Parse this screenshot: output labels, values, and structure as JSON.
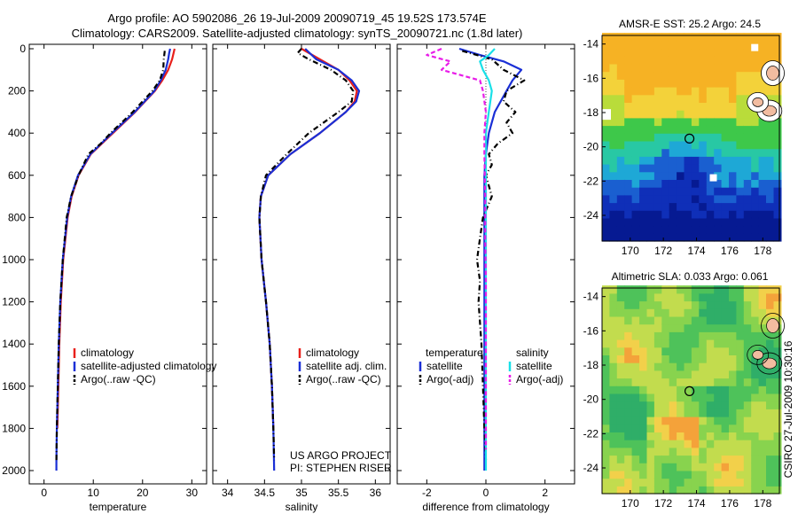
{
  "header": {
    "line1": "Argo profile: AO 5902086_26 19-Jul-2009 20090719_45 19.52S 173.574E",
    "line2": "Climatology: CARS2009. Satellite-adjusted climatology: synTS_20090721.nc (1.8d later)"
  },
  "colors": {
    "climatology": "#e8201c",
    "satellite": "#1a2fd6",
    "argo": "#000000",
    "salinity_satellite": "#19e0e8",
    "salinity_argo": "#e81ce8"
  },
  "chart_data": [
    {
      "type": "line",
      "id": "temperature",
      "xlabel": "temperature",
      "ylabel": "",
      "xlim": [
        -3,
        33
      ],
      "ylim": [
        2000,
        0
      ],
      "xticks": [
        0,
        10,
        20,
        30
      ],
      "yticks": [
        0,
        200,
        400,
        600,
        800,
        1000,
        1200,
        1400,
        1600,
        1800,
        2000
      ],
      "legend": {
        "position": "lower-right",
        "entries": [
          "climatology",
          "satellite-adjusted climatology",
          "Argo(..raw -QC)"
        ]
      },
      "series": [
        {
          "name": "climatology",
          "color": "#e8201c",
          "dash": "",
          "depth": [
            0,
            20,
            50,
            100,
            150,
            200,
            300,
            400,
            500,
            600,
            700,
            800,
            1000,
            1200,
            1400,
            1600,
            1800
          ],
          "values": [
            26.5,
            26.3,
            26.0,
            25.2,
            24.0,
            22.5,
            18.5,
            14.0,
            9.5,
            7.0,
            5.6,
            4.8,
            3.9,
            3.4,
            3.1,
            2.9,
            2.7
          ]
        },
        {
          "name": "satellite-adjusted climatology",
          "color": "#1a2fd6",
          "dash": "",
          "depth": [
            0,
            20,
            50,
            100,
            150,
            200,
            300,
            400,
            500,
            600,
            700,
            800,
            1000,
            1200,
            1400,
            1600,
            1800,
            1950,
            2000
          ],
          "values": [
            25.6,
            25.4,
            25.2,
            24.7,
            23.7,
            22.4,
            18.4,
            13.8,
            9.4,
            6.9,
            5.5,
            4.7,
            3.8,
            3.3,
            3.0,
            2.8,
            2.6,
            2.5,
            2.5
          ]
        },
        {
          "name": "Argo(..raw -QC)",
          "color": "#000000",
          "dash": "6,3,1,3",
          "depth": [
            10,
            50,
            100,
            150,
            200,
            300,
            400,
            450,
            500,
            600,
            700,
            800,
            1000,
            1200,
            1400,
            1600,
            1800,
            1950
          ],
          "values": [
            24.5,
            24.3,
            24.2,
            23.5,
            22.0,
            18.0,
            13.5,
            11.5,
            9.0,
            7.0,
            5.5,
            4.6,
            3.8,
            3.3,
            3.0,
            2.8,
            2.6,
            2.5
          ]
        }
      ]
    },
    {
      "type": "line",
      "id": "salinity",
      "xlabel": "salinity",
      "ylabel": "",
      "xlim": [
        33.8,
        36.2
      ],
      "ylim": [
        2000,
        0
      ],
      "xticks": [
        34,
        34.5,
        35,
        35.5,
        36
      ],
      "xticklabels": [
        "34",
        "34.5",
        "35",
        "35.5",
        "36"
      ],
      "legend": {
        "position": "lower-right",
        "entries": [
          "climatology",
          "satellite adj. clim.",
          "Argo(..raw -QC)"
        ]
      },
      "annotations": [
        "US ARGO PROJECT",
        "PI: STEPHEN RISER"
      ],
      "series": [
        {
          "name": "climatology",
          "color": "#e8201c",
          "dash": "",
          "depth": [
            0,
            50,
            100,
            150,
            200,
            250,
            300,
            400,
            500,
            600,
            700,
            800,
            1000,
            1200,
            1400,
            1600,
            1800
          ],
          "values": [
            35.0,
            35.25,
            35.5,
            35.65,
            35.75,
            35.72,
            35.6,
            35.25,
            34.85,
            34.55,
            34.45,
            34.43,
            34.46,
            34.52,
            34.57,
            34.6,
            34.62
          ]
        },
        {
          "name": "satellite adj. clim.",
          "color": "#1a2fd6",
          "dash": "",
          "depth": [
            0,
            50,
            100,
            150,
            200,
            250,
            300,
            400,
            500,
            600,
            700,
            800,
            1000,
            1200,
            1400,
            1600,
            1800,
            2000
          ],
          "values": [
            35.05,
            35.2,
            35.5,
            35.68,
            35.78,
            35.74,
            35.6,
            35.25,
            34.85,
            34.55,
            34.45,
            34.43,
            34.46,
            34.52,
            34.57,
            34.6,
            34.62,
            34.63
          ]
        },
        {
          "name": "Argo(..raw -QC)",
          "color": "#000000",
          "dash": "6,3,1,3",
          "depth": [
            0,
            20,
            50,
            100,
            150,
            200,
            250,
            300,
            400,
            500,
            600,
            700,
            800,
            1000,
            1200,
            1400,
            1600,
            1800,
            1950
          ],
          "values": [
            35.0,
            34.95,
            35.1,
            35.4,
            35.6,
            35.7,
            35.68,
            35.5,
            35.1,
            34.8,
            34.52,
            34.45,
            34.43,
            34.46,
            34.52,
            34.57,
            34.6,
            34.62,
            34.63
          ]
        }
      ]
    },
    {
      "type": "line",
      "id": "difference",
      "xlabel": "difference from climatology",
      "ylabel": "",
      "xlim": [
        -3,
        3
      ],
      "ylim": [
        2000,
        0
      ],
      "xticks": [
        -2,
        0,
        2
      ],
      "legend": {
        "position": "lower-center",
        "entries": [
          "temperature",
          "satellite",
          "Argo(-adj)",
          "salinity",
          "satellite",
          "Argo(-adj)"
        ]
      },
      "series": [
        {
          "name": "temperature satellite",
          "color": "#1a2fd6",
          "dash": "",
          "depth": [
            0,
            30,
            60,
            100,
            150,
            200,
            300,
            400,
            500,
            600,
            800,
            1000,
            1500,
            2000
          ],
          "values": [
            -0.9,
            -0.2,
            0.6,
            1.2,
            0.9,
            0.7,
            0.3,
            0.1,
            0.0,
            -0.05,
            -0.05,
            -0.05,
            -0.05,
            -0.05
          ]
        },
        {
          "name": "temperature Argo(-adj)",
          "color": "#000000",
          "dash": "6,3,1,3",
          "depth": [
            10,
            50,
            100,
            150,
            200,
            250,
            300,
            350,
            400,
            450,
            500,
            550,
            600,
            700,
            800,
            900,
            1000,
            1100,
            1200,
            1400,
            1600,
            1800,
            1950
          ],
          "values": [
            -0.8,
            0.2,
            0.6,
            1.3,
            0.7,
            0.6,
            1.0,
            0.7,
            0.9,
            0.4,
            0.1,
            0.2,
            0.0,
            0.2,
            -0.1,
            -0.2,
            -0.3,
            -0.2,
            -0.25,
            -0.15,
            -0.1,
            -0.05,
            0.0
          ]
        },
        {
          "name": "salinity satellite",
          "color": "#19e0e8",
          "dash": "",
          "depth": [
            0,
            30,
            60,
            100,
            150,
            200,
            300,
            400,
            500,
            600,
            800,
            1000,
            1500,
            2000
          ],
          "values": [
            0.3,
            0.1,
            -0.2,
            -0.1,
            0.1,
            0.2,
            0.1,
            0.0,
            0.0,
            0.0,
            0.0,
            0.0,
            0.0,
            0.0
          ]
        },
        {
          "name": "salinity Argo(-adj)",
          "color": "#e81ce8",
          "dash": "5,3",
          "depth": [
            0,
            30,
            60,
            100,
            150,
            200,
            300,
            400,
            500,
            700,
            900,
            1100,
            1300,
            1500,
            1700,
            1900
          ],
          "values": [
            -1.5,
            -2.0,
            -1.2,
            -1.5,
            -0.2,
            -0.1,
            0.0,
            -0.05,
            -0.05,
            -0.02,
            -0.02,
            0.0,
            0.0,
            0.0,
            0.0,
            0.0
          ]
        }
      ]
    },
    {
      "type": "heatmap",
      "id": "sst-map",
      "title": "AMSR-E SST: 25.2 Argo: 24.5",
      "xlim": [
        168.3,
        179
      ],
      "ylim": [
        -25.5,
        -13.5
      ],
      "xticks": [
        170,
        172,
        174,
        176,
        178
      ],
      "yticks": [
        -14,
        -16,
        -18,
        -20,
        -22,
        -24
      ],
      "marker": {
        "lon": 173.574,
        "lat": -19.52
      }
    },
    {
      "type": "heatmap",
      "id": "sla-map",
      "title": "Altimetric SLA: 0.033 Argo: 0.061",
      "xlim": [
        168.3,
        179
      ],
      "ylim": [
        -25.5,
        -13.5
      ],
      "xticks": [
        170,
        172,
        174,
        176,
        178
      ],
      "yticks": [
        -14,
        -16,
        -18,
        -20,
        -22,
        -24
      ],
      "marker": {
        "lon": 173.574,
        "lat": -19.52
      }
    }
  ],
  "side_stamp": "CSIRO 27-Jul-2009 10:30:16"
}
